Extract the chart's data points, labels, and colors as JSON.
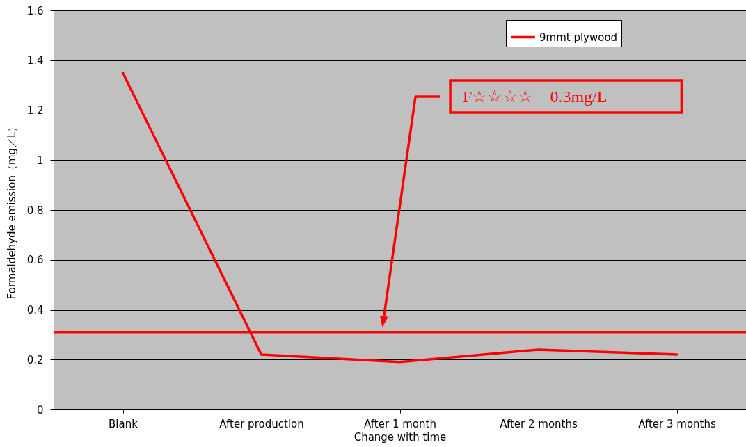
{
  "chart_data": {
    "type": "line",
    "xlabel": "Change with time",
    "ylabel": "Formaldehyde emission（mg／L）",
    "categories": [
      "Blank",
      "After production",
      "After 1 month",
      "After 2 months",
      "After 3 months"
    ],
    "series": [
      {
        "name": "9mmt plywood",
        "color": "#ff0000",
        "values": [
          1.35,
          0.22,
          0.19,
          0.24,
          0.22
        ]
      }
    ],
    "ylim": [
      0,
      1.6
    ],
    "yticks": [
      0,
      0.2,
      0.4,
      0.6,
      0.8,
      1,
      1.2,
      1.4,
      1.6
    ],
    "grid": "y",
    "legend": "top right",
    "ref_lines": [
      {
        "axis": "y",
        "value": 0.31,
        "label": "F☆☆☆☆　0.3mg/L",
        "color": "#ff0000"
      }
    ]
  }
}
